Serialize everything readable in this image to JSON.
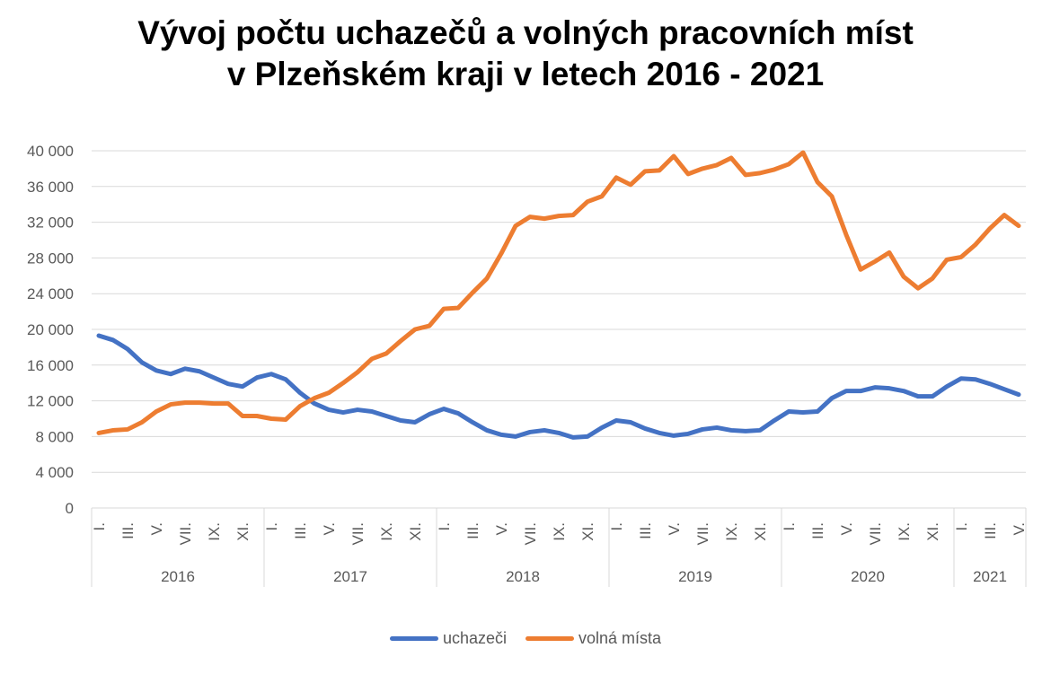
{
  "chart_data": {
    "type": "line",
    "title_line1": "Vývoj počtu uchazečů a volných pracovních míst",
    "title_line2": "v Plzeňském kraji v letech 2016 - 2021",
    "ylim": [
      0,
      40000
    ],
    "yticks": [
      "0",
      "4 000",
      "8 000",
      "12 000",
      "16 000",
      "20 000",
      "24 000",
      "28 000",
      "32 000",
      "36 000",
      "40 000"
    ],
    "ytick_values": [
      0,
      4000,
      8000,
      12000,
      16000,
      20000,
      24000,
      28000,
      32000,
      36000,
      40000
    ],
    "grid": true,
    "legend_position": "bottom",
    "month_labels": [
      "I.",
      "III.",
      "V.",
      "VII.",
      "IX.",
      "XI."
    ],
    "years": [
      {
        "label": "2016",
        "months": 12
      },
      {
        "label": "2017",
        "months": 12
      },
      {
        "label": "2018",
        "months": 12
      },
      {
        "label": "2019",
        "months": 12
      },
      {
        "label": "2020",
        "months": 12
      },
      {
        "label": "2021",
        "months": 5
      }
    ],
    "series": [
      {
        "name": "uchazeči",
        "color": "#4472C4",
        "values": [
          19300,
          18800,
          17800,
          16300,
          15400,
          15000,
          15600,
          15300,
          14600,
          13900,
          13600,
          14600,
          15000,
          14400,
          12900,
          11700,
          11000,
          10700,
          11000,
          10800,
          10300,
          9800,
          9600,
          10500,
          11100,
          10600,
          9600,
          8700,
          8200,
          8000,
          8500,
          8700,
          8400,
          7900,
          8000,
          9000,
          9800,
          9600,
          8900,
          8400,
          8100,
          8300,
          8800,
          9000,
          8700,
          8600,
          8700,
          9800,
          10800,
          10700,
          10800,
          12300,
          13100,
          13100,
          13500,
          13400,
          13100,
          12500,
          12500,
          13600,
          14500,
          14400,
          13900,
          13300,
          12700
        ]
      },
      {
        "name": "volná místa",
        "color": "#ED7D31",
        "values": [
          8400,
          8700,
          8800,
          9600,
          10800,
          11600,
          11800,
          11800,
          11700,
          11700,
          10300,
          10300,
          10000,
          9900,
          11400,
          12300,
          12900,
          14000,
          15200,
          16700,
          17300,
          18700,
          20000,
          20400,
          22300,
          22400,
          24100,
          25700,
          28500,
          31600,
          32600,
          32400,
          32700,
          32800,
          34300,
          34900,
          37000,
          36200,
          37700,
          37800,
          39400,
          37400,
          38000,
          38400,
          39200,
          37300,
          37500,
          37900,
          38500,
          39800,
          36500,
          34900,
          30600,
          26700,
          27600,
          28600,
          25900,
          24600,
          25700,
          27800,
          28100,
          29500,
          31300,
          32800,
          31600
        ]
      }
    ]
  }
}
